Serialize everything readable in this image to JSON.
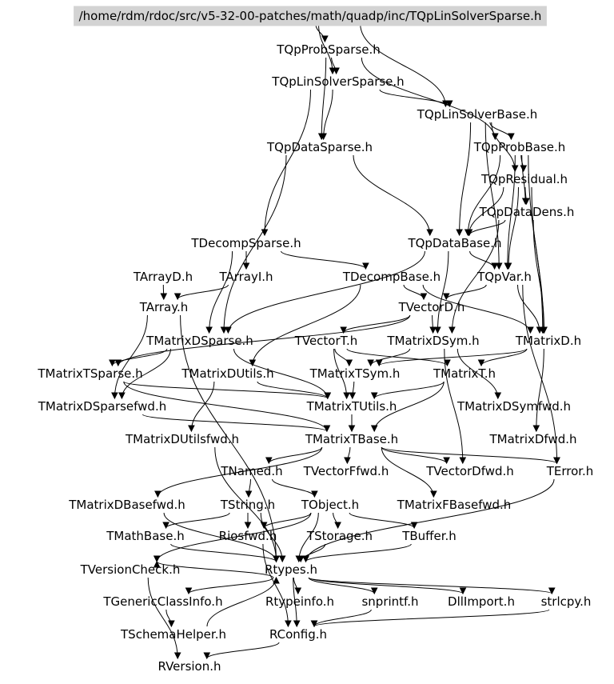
{
  "root": {
    "id": "root",
    "label": "/home/rdm/rdoc/src/v5-32-00-patches/math/quadp/inc/TQpLinSolverSparse.h"
  },
  "nodes": [
    {
      "id": "probsparse",
      "label": "TQpProbSparse.h"
    },
    {
      "id": "linsolversparse",
      "label": "TQpLinSolverSparse.h"
    },
    {
      "id": "linsolverbase",
      "label": "TQpLinSolverBase.h"
    },
    {
      "id": "datasparse",
      "label": "TQpDataSparse.h"
    },
    {
      "id": "probbase",
      "label": "TQpProbBase.h"
    },
    {
      "id": "residual",
      "label": "TQpResidual.h"
    },
    {
      "id": "datadens",
      "label": "TQpDataDens.h"
    },
    {
      "id": "decompsparse",
      "label": "TDecompSparse.h"
    },
    {
      "id": "databasequadp",
      "label": "TQpDataBase.h"
    },
    {
      "id": "arrayd",
      "label": "TArrayD.h"
    },
    {
      "id": "arrayi",
      "label": "TArrayI.h"
    },
    {
      "id": "decompbase",
      "label": "TDecompBase.h"
    },
    {
      "id": "qpvar",
      "label": "TQpVar.h"
    },
    {
      "id": "tarray",
      "label": "TArray.h"
    },
    {
      "id": "vectord",
      "label": "TVectorD.h"
    },
    {
      "id": "matrixdsparse",
      "label": "TMatrixDSparse.h"
    },
    {
      "id": "vectort",
      "label": "TVectorT.h"
    },
    {
      "id": "matrixdsym",
      "label": "TMatrixDSym.h"
    },
    {
      "id": "matrixd",
      "label": "TMatrixD.h"
    },
    {
      "id": "matrixtsparse",
      "label": "TMatrixTSparse.h"
    },
    {
      "id": "matrixdutils",
      "label": "TMatrixDUtils.h"
    },
    {
      "id": "matrixtsym",
      "label": "TMatrixTSym.h"
    },
    {
      "id": "matrixt",
      "label": "TMatrixT.h"
    },
    {
      "id": "matrixdsparsefwd",
      "label": "TMatrixDSparsefwd.h"
    },
    {
      "id": "matrixtutils",
      "label": "TMatrixTUtils.h"
    },
    {
      "id": "matrixdsymfwd",
      "label": "TMatrixDSymfwd.h"
    },
    {
      "id": "matrixdutilsfwd",
      "label": "TMatrixDUtilsfwd.h"
    },
    {
      "id": "matrixtbase",
      "label": "TMatrixTBase.h"
    },
    {
      "id": "matrixdfwd",
      "label": "TMatrixDfwd.h"
    },
    {
      "id": "tnamed",
      "label": "TNamed.h"
    },
    {
      "id": "vectorffwd",
      "label": "TVectorFfwd.h"
    },
    {
      "id": "vectordfwd",
      "label": "TVectorDfwd.h"
    },
    {
      "id": "terror",
      "label": "TError.h"
    },
    {
      "id": "matrixdbasefwd",
      "label": "TMatrixDBasefwd.h"
    },
    {
      "id": "tstring",
      "label": "TString.h"
    },
    {
      "id": "tobject",
      "label": "TObject.h"
    },
    {
      "id": "matrixfbasefwd",
      "label": "TMatrixFBasefwd.h"
    },
    {
      "id": "mathbase",
      "label": "TMathBase.h"
    },
    {
      "id": "riosfwd",
      "label": "Riosfwd.h"
    },
    {
      "id": "tstorage",
      "label": "TStorage.h"
    },
    {
      "id": "tbuffer",
      "label": "TBuffer.h"
    },
    {
      "id": "versioncheck",
      "label": "TVersionCheck.h"
    },
    {
      "id": "rtypes",
      "label": "Rtypes.h"
    },
    {
      "id": "genericclassinfo",
      "label": "TGenericClassInfo.h"
    },
    {
      "id": "rtypeinfo",
      "label": "Rtypeinfo.h"
    },
    {
      "id": "snprintf",
      "label": "snprintf.h"
    },
    {
      "id": "dllimport",
      "label": "DllImport.h"
    },
    {
      "id": "strlcpy",
      "label": "strlcpy.h"
    },
    {
      "id": "schemahelper",
      "label": "TSchemaHelper.h"
    },
    {
      "id": "rconfig",
      "label": "RConfig.h"
    },
    {
      "id": "rversion",
      "label": "RVersion.h"
    }
  ]
}
